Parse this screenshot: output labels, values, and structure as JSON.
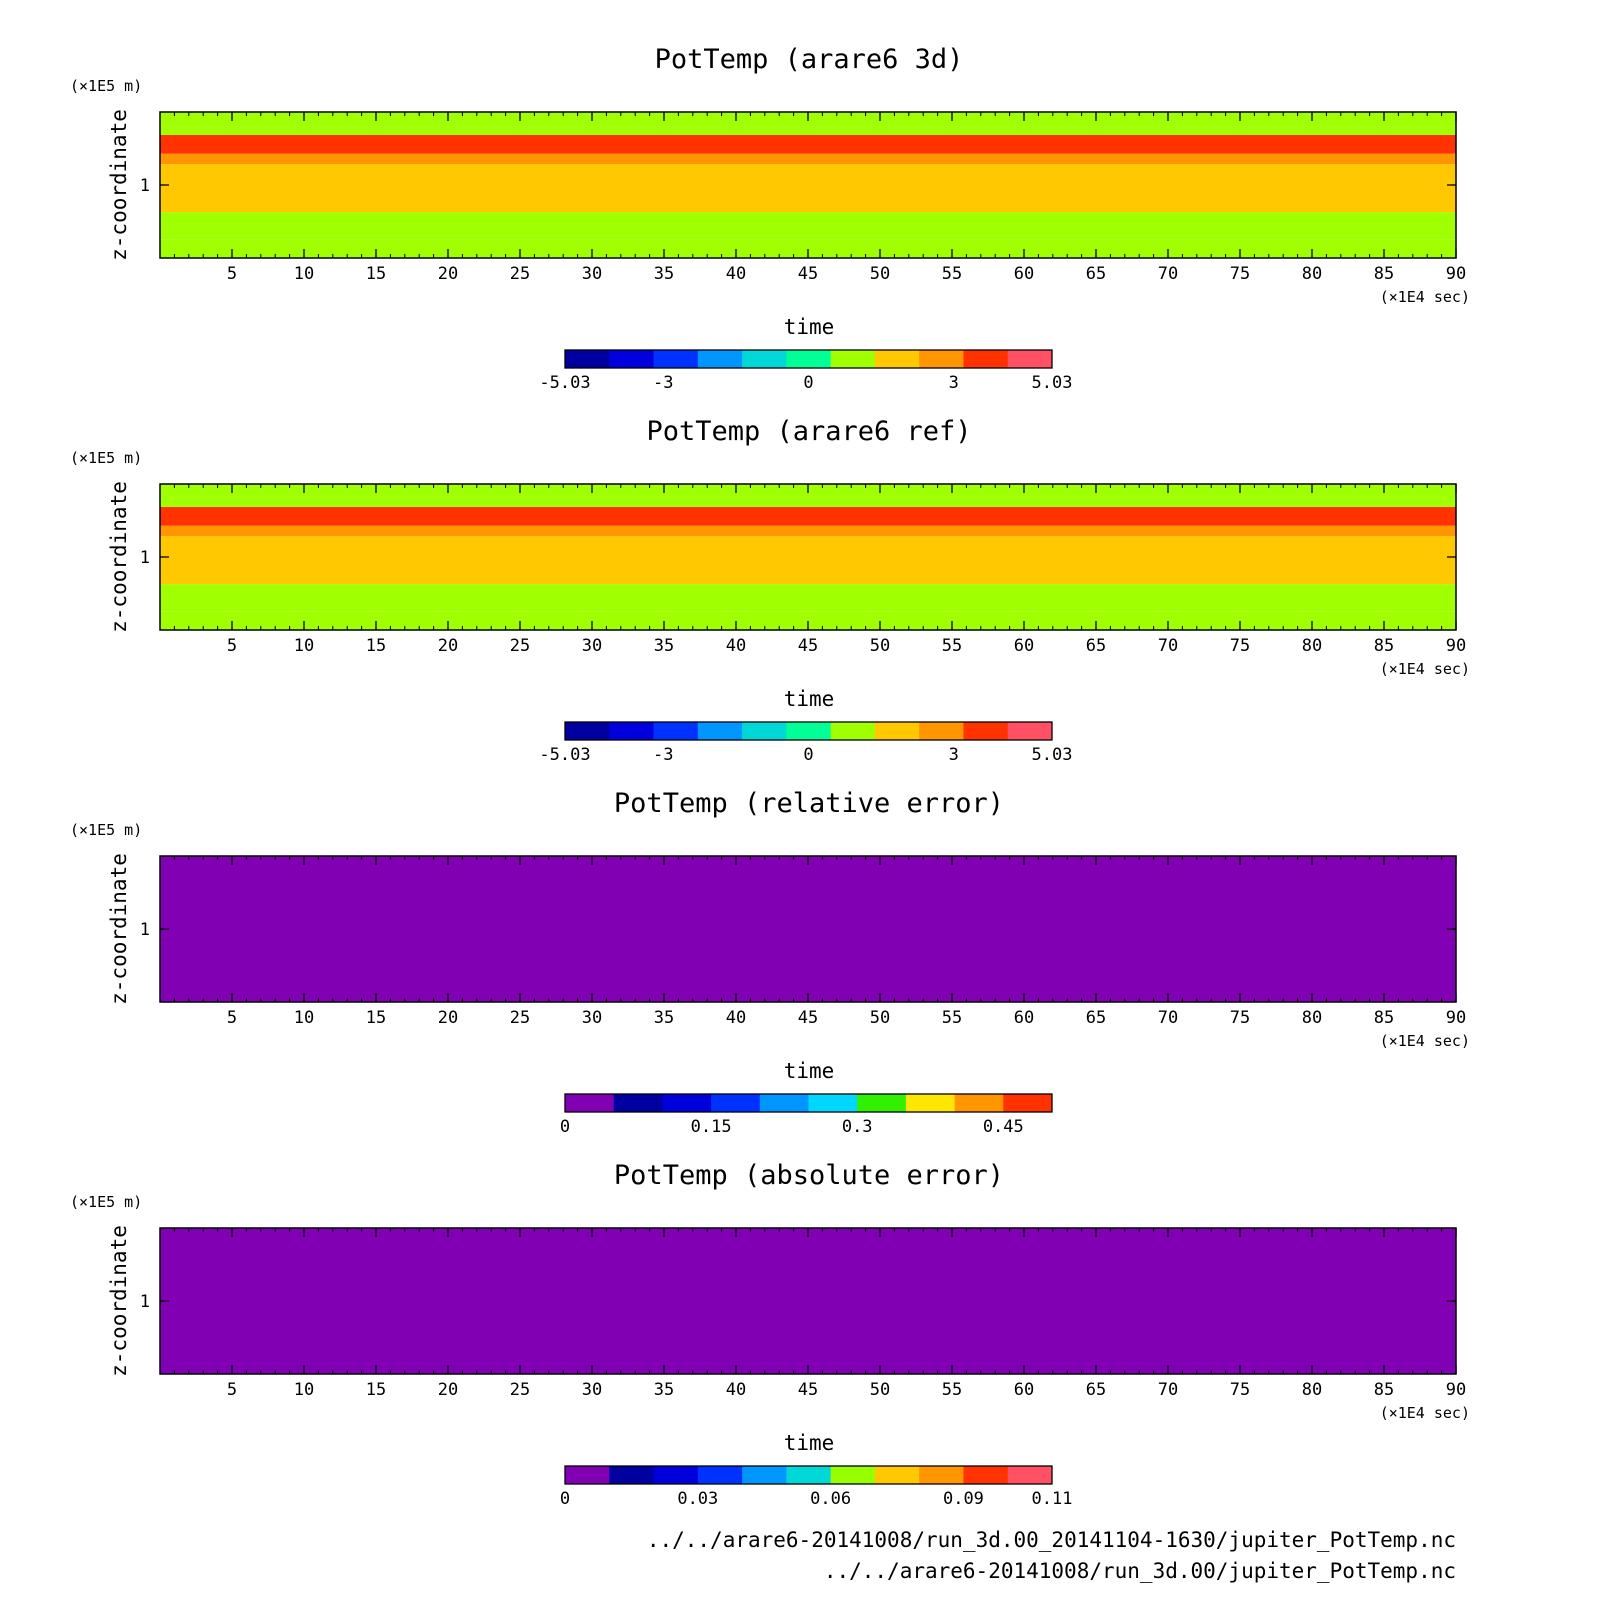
{
  "chart_data": [
    {
      "type": "heatmap",
      "title": "PotTemp (arare6 3d)",
      "xlabel": "time",
      "x_unit": "(×1E4 sec)",
      "ylabel": "z-coordinate",
      "y_unit": "(×1E5 m)",
      "xlim": [
        0,
        90
      ],
      "x_ticks": [
        "5",
        "10",
        "15",
        "20",
        "25",
        "30",
        "35",
        "40",
        "45",
        "50",
        "55",
        "60",
        "65",
        "70",
        "75",
        "80",
        "85",
        "90"
      ],
      "y_ticks": [
        "1"
      ],
      "ylim": [
        0.65,
        1.35
      ],
      "colorbar": {
        "range": [
          -5.03,
          5.03
        ],
        "tick_labels": [
          "-5.03",
          "-3",
          "0",
          "3",
          "5.03"
        ],
        "tick_values": [
          -5.03,
          -3,
          0,
          3,
          5.03
        ],
        "colors": [
          "#0000a0",
          "#0000dc",
          "#0032ff",
          "#0096ff",
          "#00d7d7",
          "#00ff96",
          "#a0ff00",
          "#ffc800",
          "#ff9600",
          "#ff3200",
          "#ff5064"
        ]
      },
      "bands": [
        {
          "z0": 0.65,
          "z1": 0.74,
          "value": 0.5
        },
        {
          "z0": 0.74,
          "z1": 0.87,
          "value": 1.2
        },
        {
          "z0": 0.87,
          "z1": 1.1,
          "value": 2.2
        },
        {
          "z0": 1.1,
          "z1": 1.15,
          "value": 3.0
        },
        {
          "z0": 1.15,
          "z1": 1.24,
          "value": 3.8
        },
        {
          "z0": 1.24,
          "z1": 1.28,
          "value": 1.2
        },
        {
          "z0": 1.28,
          "z1": 1.35,
          "value": 0.8
        }
      ]
    },
    {
      "type": "heatmap",
      "title": "PotTemp (arare6 ref)",
      "xlabel": "time",
      "x_unit": "(×1E4 sec)",
      "ylabel": "z-coordinate",
      "y_unit": "(×1E5 m)",
      "xlim": [
        0,
        90
      ],
      "x_ticks": [
        "5",
        "10",
        "15",
        "20",
        "25",
        "30",
        "35",
        "40",
        "45",
        "50",
        "55",
        "60",
        "65",
        "70",
        "75",
        "80",
        "85",
        "90"
      ],
      "y_ticks": [
        "1"
      ],
      "ylim": [
        0.65,
        1.35
      ],
      "colorbar": {
        "range": [
          -5.03,
          5.03
        ],
        "tick_labels": [
          "-5.03",
          "-3",
          "0",
          "3",
          "5.03"
        ],
        "tick_values": [
          -5.03,
          -3,
          0,
          3,
          5.03
        ],
        "colors": [
          "#0000a0",
          "#0000dc",
          "#0032ff",
          "#0096ff",
          "#00d7d7",
          "#00ff96",
          "#a0ff00",
          "#ffc800",
          "#ff9600",
          "#ff3200",
          "#ff5064"
        ]
      },
      "bands": [
        {
          "z0": 0.65,
          "z1": 0.74,
          "value": 0.5
        },
        {
          "z0": 0.74,
          "z1": 0.87,
          "value": 1.2
        },
        {
          "z0": 0.87,
          "z1": 1.1,
          "value": 2.2
        },
        {
          "z0": 1.1,
          "z1": 1.15,
          "value": 3.0
        },
        {
          "z0": 1.15,
          "z1": 1.24,
          "value": 3.8
        },
        {
          "z0": 1.24,
          "z1": 1.28,
          "value": 1.2
        },
        {
          "z0": 1.28,
          "z1": 1.35,
          "value": 0.8
        }
      ]
    },
    {
      "type": "heatmap",
      "title": "PotTemp (relative error)",
      "xlabel": "time",
      "x_unit": "(×1E4 sec)",
      "ylabel": "z-coordinate",
      "y_unit": "(×1E5 m)",
      "xlim": [
        0,
        90
      ],
      "x_ticks": [
        "5",
        "10",
        "15",
        "20",
        "25",
        "30",
        "35",
        "40",
        "45",
        "50",
        "55",
        "60",
        "65",
        "70",
        "75",
        "80",
        "85",
        "90"
      ],
      "y_ticks": [
        "1"
      ],
      "ylim": [
        0.65,
        1.35
      ],
      "colorbar": {
        "range": [
          0,
          0.5
        ],
        "tick_labels": [
          "0",
          "0.15",
          "0.3",
          "0.45"
        ],
        "tick_values": [
          0,
          0.15,
          0.3,
          0.45
        ],
        "colors": [
          "#8200b4",
          "#0000a0",
          "#0000dc",
          "#0032ff",
          "#0096ff",
          "#00d7ff",
          "#32f000",
          "#ffe600",
          "#ff9600",
          "#ff3200"
        ]
      },
      "bands": [
        {
          "z0": 0.65,
          "z1": 1.35,
          "value": 0.0
        }
      ]
    },
    {
      "type": "heatmap",
      "title": "PotTemp (absolute error)",
      "xlabel": "time",
      "x_unit": "(×1E4 sec)",
      "ylabel": "z-coordinate",
      "y_unit": "(×1E5 m)",
      "xlim": [
        0,
        90
      ],
      "x_ticks": [
        "5",
        "10",
        "15",
        "20",
        "25",
        "30",
        "35",
        "40",
        "45",
        "50",
        "55",
        "60",
        "65",
        "70",
        "75",
        "80",
        "85",
        "90"
      ],
      "y_ticks": [
        "1"
      ],
      "ylim": [
        0.65,
        1.35
      ],
      "colorbar": {
        "range": [
          0,
          0.11
        ],
        "tick_labels": [
          "0",
          "0.03",
          "0.06",
          "0.09",
          "0.11"
        ],
        "tick_values": [
          0,
          0.03,
          0.06,
          0.09,
          0.11
        ],
        "colors": [
          "#8200b4",
          "#0000a0",
          "#0000dc",
          "#0032ff",
          "#0096ff",
          "#00d7d7",
          "#96ff00",
          "#ffc800",
          "#ff9600",
          "#ff3200",
          "#ff5064"
        ]
      },
      "bands": [
        {
          "z0": 0.65,
          "z1": 1.35,
          "value": 0.0
        }
      ]
    }
  ],
  "source_files": [
    "../../arare6-20141008/run_3d.00_20141104-1630/jupiter_PotTemp.nc",
    "../../arare6-20141008/run_3d.00/jupiter_PotTemp.nc"
  ]
}
